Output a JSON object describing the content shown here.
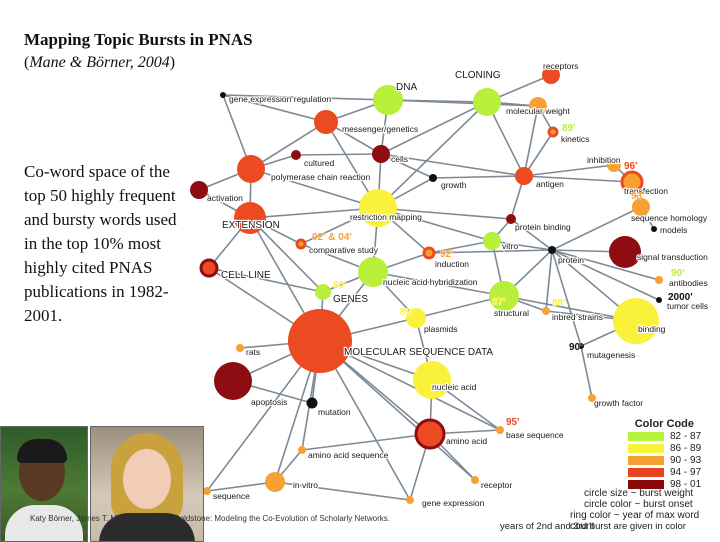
{
  "title": "Mapping Topic Bursts in PNAS",
  "citation_open": "(",
  "citation": "Mane & Börner, 2004",
  "citation_close": ")",
  "body_text": "Co-word space of the top 50 highly frequent and bursty words used in the top 10% most highly cited PNAS publications in 1982-2001.",
  "footer_credit": "Katy Börner, James T. Maru & Robert L. Goldstone: Modeling the Co-Evolution of Scholarly Networks.",
  "legend": {
    "title": "Color Code",
    "items": [
      {
        "label": "82 - 87",
        "color": "#b5f23a"
      },
      {
        "label": "86 - 89",
        "color": "#f7f23a"
      },
      {
        "label": "90 - 93",
        "color": "#f7a032"
      },
      {
        "label": "94 - 97",
        "color": "#e8421e"
      },
      {
        "label": "98 - 01",
        "color": "#8a0a0a"
      }
    ],
    "note_1": "circle size ~ burst weight",
    "note_2": "circle color ~ burst onset",
    "note_3": "ring color ~ year of max word count",
    "note_4": "years of 2nd and 3rd burst are given in color"
  },
  "colors": {
    "green": "#b8ef3a",
    "yellow": "#f9f13a",
    "orange": "#f8a132",
    "red": "#ec4a20",
    "darkred": "#8e0d12",
    "black": "#111111",
    "edge": "#7d8a96"
  },
  "nodes": [
    {
      "id": "dna",
      "label": "DNA",
      "color": "green",
      "size": 15
    },
    {
      "id": "cloning",
      "label": "CLONING",
      "color": "green",
      "size": 14
    },
    {
      "id": "receptors",
      "label": "receptors",
      "color": "red",
      "size": 9
    },
    {
      "id": "molecular-weight",
      "label": "molecular weight",
      "color": "orange",
      "size": 9
    },
    {
      "id": "kinetics",
      "label": "kinetics",
      "color": "orange",
      "size": 4
    },
    {
      "id": "gene-expression-regulation",
      "label": "gene expression regulation",
      "color": "black",
      "size": 3
    },
    {
      "id": "messenger-genetics",
      "label": "messenger/genetics",
      "color": "red",
      "size": 12
    },
    {
      "id": "cultured",
      "label": "cultured",
      "color": "darkred",
      "size": 5
    },
    {
      "id": "cells",
      "label": "cells",
      "color": "darkred",
      "size": 9
    },
    {
      "id": "polymerase-chain-reaction",
      "label": "polymerase chain reaction",
      "color": "red",
      "size": 14
    },
    {
      "id": "growth",
      "label": "growth",
      "color": "black",
      "size": 4
    },
    {
      "id": "antigen",
      "label": "antigen",
      "color": "red",
      "size": 9
    },
    {
      "id": "inhibition",
      "label": "inhibition",
      "color": "orange",
      "size": 7
    },
    {
      "id": "transfection",
      "label": "transfection",
      "color": "orange",
      "size": 10
    },
    {
      "id": "activation",
      "label": "activation",
      "color": "darkred",
      "size": 9
    },
    {
      "id": "extension",
      "label": "EXTENSION",
      "color": "red",
      "size": 16
    },
    {
      "id": "restriction-mapping",
      "label": "restriction mapping",
      "color": "yellow",
      "size": 19
    },
    {
      "id": "protein-binding",
      "label": "protein binding",
      "color": "darkred",
      "size": 5
    },
    {
      "id": "sequence-homology",
      "label": "sequence homology",
      "color": "orange",
      "size": 9
    },
    {
      "id": "models",
      "label": "models",
      "color": "black",
      "size": 3
    },
    {
      "id": "comparative-study",
      "label": "comparative study",
      "color": "orange",
      "size": 4
    },
    {
      "id": "vitro",
      "label": "vitro",
      "color": "green",
      "size": 9
    },
    {
      "id": "induction",
      "label": "induction",
      "color": "orange",
      "size": 5
    },
    {
      "id": "protein",
      "label": "protein",
      "color": "black",
      "size": 4
    },
    {
      "id": "signal-transduction",
      "label": "signal transduction",
      "color": "darkred",
      "size": 16
    },
    {
      "id": "cell-line",
      "label": "CELL LINE",
      "color": "red",
      "size": 8
    },
    {
      "id": "genes",
      "label": "GENES",
      "color": "green",
      "size": 8
    },
    {
      "id": "nucleic-acid-hybridization",
      "label": "nucleic acid hybridization",
      "color": "green",
      "size": 15
    },
    {
      "id": "antibodies",
      "label": "antibodies",
      "color": "orange",
      "size": 4
    },
    {
      "id": "tumor-cells",
      "label": "tumor cells",
      "color": "black",
      "size": 3
    },
    {
      "id": "structural",
      "label": "structural",
      "color": "green",
      "size": 15
    },
    {
      "id": "inbred-strains",
      "label": "inbred strains",
      "color": "orange",
      "size": 4
    },
    {
      "id": "binding",
      "label": "binding",
      "color": "yellow",
      "size": 23
    },
    {
      "id": "plasmids",
      "label": "plasmids",
      "color": "yellow",
      "size": 10
    },
    {
      "id": "rats",
      "label": "rats",
      "color": "orange",
      "size": 4
    },
    {
      "id": "molecular-sequence-data",
      "label": "MOLECULAR SEQUENCE DATA",
      "color": "red",
      "size": 32
    },
    {
      "id": "mutagenesis",
      "label": "mutagenesis",
      "color": "black",
      "size": 3
    },
    {
      "id": "nucleic-acid",
      "label": "nucleic acid",
      "color": "yellow",
      "size": 19
    },
    {
      "id": "apoptosis",
      "label": "apoptosis",
      "color": "darkred",
      "size": 19
    },
    {
      "id": "mutation",
      "label": "mutation",
      "color": "black",
      "size": 4
    },
    {
      "id": "growth-factor",
      "label": "growth factor",
      "color": "orange",
      "size": 4
    },
    {
      "id": "base-sequence",
      "label": "base sequence",
      "color": "orange",
      "size": 4
    },
    {
      "id": "amino-acid",
      "label": "amino acid",
      "color": "red",
      "size": 14
    },
    {
      "id": "amino-acid-sequence",
      "label": "amino acid sequence",
      "color": "orange",
      "size": 4
    },
    {
      "id": "receptor",
      "label": "receptor",
      "color": "orange",
      "size": 4
    },
    {
      "id": "in-vitro",
      "label": "in vitro",
      "color": "orange",
      "size": 10
    },
    {
      "id": "sequence",
      "label": "sequence",
      "color": "orange",
      "size": 4
    },
    {
      "id": "gene-expression",
      "label": "gene expression",
      "color": "orange",
      "size": 4
    }
  ],
  "year_labels": [
    {
      "text": "89'",
      "color": "green"
    },
    {
      "text": "96'",
      "color": "red"
    },
    {
      "text": "93'",
      "color": "orange"
    },
    {
      "text": "02' & 04'",
      "color": "orange"
    },
    {
      "text": "92'",
      "color": "orange"
    },
    {
      "text": "90'",
      "color": "green"
    },
    {
      "text": "2000'",
      "color": "black"
    },
    {
      "text": "80'",
      "color": "yellow"
    },
    {
      "text": "89'",
      "color": "yellow"
    },
    {
      "text": "87'",
      "color": "yellow"
    },
    {
      "text": "88'",
      "color": "yellow"
    },
    {
      "text": "90'",
      "color": "black"
    },
    {
      "text": "95'",
      "color": "red"
    }
  ]
}
